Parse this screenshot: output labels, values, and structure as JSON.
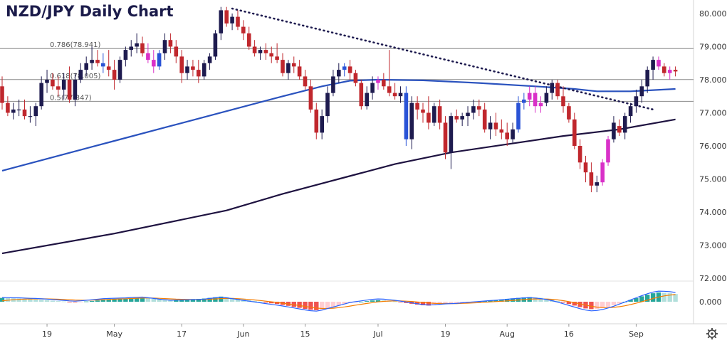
{
  "chart_data": {
    "type": "candlestick",
    "title": "NZD/JPY Daily Chart",
    "colors": {
      "up": "#1e1b4f",
      "down": "#c0272d",
      "doji_up": "#2a53d6",
      "doji_down": "#d930c8",
      "ma_fast": "#2a52be",
      "ma_slow": "#1e1240",
      "trendline": "#1e1b4f",
      "fib": "#888888",
      "hist_pos": "#26a69a",
      "hist_pos_light": "#b2dfdb",
      "hist_neg": "#ef5350",
      "hist_neg_light": "#ffcdd2",
      "macd": "#2962ff",
      "signal": "#f57c00"
    },
    "y_axis": {
      "ticks": [
        "80.000",
        "79.000",
        "78.000",
        "77.000",
        "76.000",
        "75.000",
        "74.000",
        "73.000",
        "72.000"
      ],
      "values": [
        80,
        79,
        78,
        77,
        76,
        75,
        74,
        73,
        72
      ],
      "range": [
        72,
        80.2
      ]
    },
    "x_axis": {
      "labels": [
        "19",
        "May",
        "17",
        "Jun",
        "15",
        "Jul",
        "19",
        "Aug",
        "16",
        "Sep"
      ],
      "at_index": [
        8,
        20,
        32,
        43,
        54,
        67,
        79,
        90,
        101,
        113
      ]
    },
    "fib_levels": [
      {
        "label": "0.786(78.941)",
        "value": 78.941
      },
      {
        "label": "0.618(78.005)",
        "value": 78.005
      },
      {
        "label": "0.5(77.347)",
        "value": 77.347
      }
    ],
    "trendline": {
      "from": {
        "index": 41,
        "value": 80.15
      },
      "to": {
        "index": 116,
        "value": 77.1
      }
    },
    "candles": [
      [
        77.8,
        78.1,
        77.1,
        77.3
      ],
      [
        77.3,
        77.5,
        76.9,
        77.0
      ],
      [
        77.0,
        77.3,
        76.8,
        77.1
      ],
      [
        77.1,
        77.4,
        76.9,
        77.1
      ],
      [
        77.1,
        77.4,
        76.8,
        76.9
      ],
      [
        76.9,
        77.2,
        76.7,
        76.9
      ],
      [
        76.9,
        77.3,
        76.6,
        77.2
      ],
      [
        77.2,
        78.1,
        77.1,
        77.9
      ],
      [
        77.9,
        78.3,
        77.6,
        78.0
      ],
      [
        78.0,
        78.2,
        77.7,
        77.8
      ],
      [
        77.8,
        78.1,
        77.5,
        77.7
      ],
      [
        77.7,
        78.2,
        77.4,
        78.0
      ],
      [
        78.0,
        78.4,
        77.3,
        77.4
      ],
      [
        77.4,
        78.2,
        77.2,
        78.0
      ],
      [
        78.0,
        78.5,
        77.9,
        78.3
      ],
      [
        78.3,
        78.7,
        78.1,
        78.5
      ],
      [
        78.5,
        79.0,
        78.3,
        78.6
      ],
      [
        78.6,
        78.9,
        78.4,
        78.5
      ],
      [
        78.5,
        78.8,
        78.2,
        78.4
      ],
      [
        78.4,
        78.9,
        78.1,
        78.3
      ],
      [
        78.3,
        78.6,
        77.7,
        78.0
      ],
      [
        78.0,
        78.7,
        77.9,
        78.6
      ],
      [
        78.6,
        79.0,
        78.4,
        78.9
      ],
      [
        78.9,
        79.2,
        78.7,
        79.0
      ],
      [
        79.0,
        79.4,
        78.8,
        79.1
      ],
      [
        79.1,
        79.3,
        78.7,
        78.8
      ],
      [
        78.8,
        79.1,
        78.5,
        78.6
      ],
      [
        78.6,
        78.9,
        78.2,
        78.4
      ],
      [
        78.4,
        78.9,
        78.3,
        78.8
      ],
      [
        78.8,
        79.4,
        78.6,
        79.2
      ],
      [
        79.2,
        79.4,
        78.8,
        79.0
      ],
      [
        79.0,
        79.2,
        78.5,
        78.7
      ],
      [
        78.7,
        78.9,
        77.9,
        78.2
      ],
      [
        78.2,
        78.6,
        78.0,
        78.4
      ],
      [
        78.4,
        78.6,
        78.1,
        78.3
      ],
      [
        78.3,
        78.6,
        77.9,
        78.1
      ],
      [
        78.1,
        78.6,
        78.0,
        78.5
      ],
      [
        78.5,
        78.8,
        78.3,
        78.7
      ],
      [
        78.7,
        79.5,
        78.6,
        79.4
      ],
      [
        79.4,
        80.2,
        79.2,
        80.1
      ],
      [
        80.1,
        80.2,
        79.6,
        79.7
      ],
      [
        79.7,
        80.0,
        79.5,
        79.9
      ],
      [
        79.9,
        80.1,
        79.5,
        79.6
      ],
      [
        79.6,
        79.8,
        79.2,
        79.4
      ],
      [
        79.4,
        79.6,
        78.9,
        79.0
      ],
      [
        79.0,
        79.2,
        78.7,
        78.8
      ],
      [
        78.8,
        79.0,
        78.6,
        78.9
      ],
      [
        78.9,
        79.1,
        78.6,
        78.8
      ],
      [
        78.8,
        79.0,
        78.5,
        78.7
      ],
      [
        78.7,
        79.1,
        78.5,
        78.6
      ],
      [
        78.6,
        78.8,
        78.1,
        78.2
      ],
      [
        78.2,
        78.6,
        78.0,
        78.5
      ],
      [
        78.5,
        78.7,
        78.2,
        78.4
      ],
      [
        78.4,
        78.6,
        78.0,
        78.1
      ],
      [
        78.1,
        78.3,
        77.7,
        77.8
      ],
      [
        77.8,
        78.0,
        77.0,
        77.1
      ],
      [
        77.1,
        77.3,
        76.2,
        76.4
      ],
      [
        76.4,
        77.1,
        76.2,
        76.9
      ],
      [
        76.9,
        77.8,
        76.7,
        77.6
      ],
      [
        77.6,
        78.3,
        77.5,
        78.1
      ],
      [
        78.1,
        78.5,
        77.9,
        78.3
      ],
      [
        78.3,
        78.5,
        78.1,
        78.4
      ],
      [
        78.4,
        78.6,
        78.0,
        78.2
      ],
      [
        78.2,
        78.3,
        77.8,
        77.9
      ],
      [
        77.9,
        78.0,
        77.1,
        77.2
      ],
      [
        77.2,
        77.8,
        77.1,
        77.6
      ],
      [
        77.6,
        78.1,
        77.4,
        77.9
      ],
      [
        77.9,
        78.1,
        77.7,
        78.0
      ],
      [
        78.0,
        78.2,
        77.7,
        77.8
      ],
      [
        77.8,
        78.9,
        77.5,
        77.6
      ],
      [
        77.6,
        77.9,
        77.4,
        77.5
      ],
      [
        77.5,
        77.8,
        77.3,
        77.6
      ],
      [
        77.6,
        77.8,
        76.0,
        76.2
      ],
      [
        76.2,
        77.5,
        75.9,
        77.3
      ],
      [
        77.3,
        77.5,
        76.8,
        77.1
      ],
      [
        77.1,
        77.3,
        76.7,
        77.0
      ],
      [
        77.0,
        77.5,
        76.5,
        76.7
      ],
      [
        76.7,
        77.3,
        76.6,
        77.2
      ],
      [
        77.2,
        77.4,
        76.5,
        76.7
      ],
      [
        76.7,
        76.9,
        75.6,
        75.8
      ],
      [
        75.8,
        77.0,
        75.3,
        76.9
      ],
      [
        76.9,
        77.1,
        76.7,
        76.8
      ],
      [
        76.8,
        77.0,
        76.6,
        76.9
      ],
      [
        76.9,
        77.2,
        76.6,
        77.0
      ],
      [
        77.0,
        77.4,
        76.8,
        77.2
      ],
      [
        77.2,
        77.4,
        76.9,
        77.1
      ],
      [
        77.1,
        77.3,
        76.4,
        76.5
      ],
      [
        76.5,
        76.9,
        76.2,
        76.7
      ],
      [
        76.7,
        77.0,
        76.3,
        76.5
      ],
      [
        76.5,
        76.8,
        76.2,
        76.4
      ],
      [
        76.4,
        76.7,
        76.0,
        76.2
      ],
      [
        76.2,
        76.7,
        76.1,
        76.5
      ],
      [
        76.5,
        77.5,
        76.4,
        77.3
      ],
      [
        77.3,
        77.6,
        77.1,
        77.4
      ],
      [
        77.4,
        77.8,
        77.2,
        77.6
      ],
      [
        77.6,
        77.8,
        77.0,
        77.2
      ],
      [
        77.2,
        77.5,
        77.0,
        77.3
      ],
      [
        77.3,
        77.8,
        77.2,
        77.6
      ],
      [
        77.6,
        78.0,
        77.4,
        77.9
      ],
      [
        77.9,
        78.0,
        77.4,
        77.5
      ],
      [
        77.5,
        77.8,
        77.0,
        77.2
      ],
      [
        77.2,
        77.3,
        76.7,
        76.8
      ],
      [
        76.8,
        77.0,
        75.9,
        76.0
      ],
      [
        76.0,
        76.2,
        75.3,
        75.5
      ],
      [
        75.5,
        75.7,
        74.9,
        75.2
      ],
      [
        75.2,
        75.5,
        74.6,
        74.8
      ],
      [
        74.8,
        75.1,
        74.6,
        74.9
      ],
      [
        74.9,
        75.6,
        74.8,
        75.5
      ],
      [
        75.5,
        76.3,
        75.4,
        76.2
      ],
      [
        76.2,
        76.9,
        76.1,
        76.7
      ],
      [
        76.6,
        76.8,
        76.3,
        76.4
      ],
      [
        76.4,
        77.0,
        76.2,
        76.9
      ],
      [
        76.9,
        77.3,
        76.7,
        77.2
      ],
      [
        77.2,
        77.7,
        77.0,
        77.5
      ],
      [
        77.5,
        78.0,
        77.3,
        77.8
      ],
      [
        77.8,
        78.4,
        77.6,
        78.3
      ],
      [
        78.3,
        78.7,
        78.0,
        78.6
      ],
      [
        78.6,
        78.7,
        78.3,
        78.4
      ],
      [
        78.4,
        78.5,
        78.1,
        78.2
      ],
      [
        78.2,
        78.4,
        78.0,
        78.3
      ],
      [
        78.3,
        78.4,
        78.1,
        78.25
      ]
    ],
    "doji_up_indices": [
      18,
      28,
      61,
      72,
      92,
      93
    ],
    "doji_down_indices": [
      26,
      27,
      67,
      94,
      95,
      96,
      107,
      108,
      117,
      119
    ],
    "ma_fast": [
      {
        "i": 0,
        "v": 75.25
      },
      {
        "i": 10,
        "v": 75.7
      },
      {
        "i": 20,
        "v": 76.15
      },
      {
        "i": 30,
        "v": 76.6
      },
      {
        "i": 40,
        "v": 77.05
      },
      {
        "i": 50,
        "v": 77.5
      },
      {
        "i": 57,
        "v": 77.8
      },
      {
        "i": 62,
        "v": 77.97
      },
      {
        "i": 67,
        "v": 78.0
      },
      {
        "i": 75,
        "v": 77.98
      },
      {
        "i": 85,
        "v": 77.9
      },
      {
        "i": 95,
        "v": 77.8
      },
      {
        "i": 102,
        "v": 77.72
      },
      {
        "i": 106,
        "v": 77.65
      },
      {
        "i": 112,
        "v": 77.65
      },
      {
        "i": 120,
        "v": 77.72
      }
    ],
    "ma_slow": [
      {
        "i": 0,
        "v": 72.75
      },
      {
        "i": 20,
        "v": 73.35
      },
      {
        "i": 40,
        "v": 74.05
      },
      {
        "i": 50,
        "v": 74.55
      },
      {
        "i": 60,
        "v": 75.0
      },
      {
        "i": 70,
        "v": 75.45
      },
      {
        "i": 80,
        "v": 75.8
      },
      {
        "i": 90,
        "v": 76.05
      },
      {
        "i": 100,
        "v": 76.3
      },
      {
        "i": 110,
        "v": 76.5
      },
      {
        "i": 120,
        "v": 76.8
      }
    ],
    "macd_panel": {
      "zero_label": "0.000",
      "hist": [
        0.3,
        0.28,
        0.26,
        0.25,
        0.22,
        0.2,
        0.18,
        0.15,
        0.12,
        0.08,
        0.05,
        0.02,
        -0.02,
        -0.04,
        -0.02,
        0.02,
        0.06,
        0.1,
        0.14,
        0.16,
        0.18,
        0.2,
        0.22,
        0.25,
        0.28,
        0.3,
        0.26,
        0.22,
        0.18,
        0.15,
        0.12,
        0.14,
        0.16,
        0.18,
        0.2,
        0.22,
        0.25,
        0.3,
        0.35,
        0.4,
        0.36,
        0.3,
        0.24,
        0.18,
        0.12,
        0.06,
        0.0,
        -0.06,
        -0.12,
        -0.18,
        -0.25,
        -0.32,
        -0.4,
        -0.48,
        -0.56,
        -0.62,
        -0.66,
        -0.6,
        -0.5,
        -0.4,
        -0.3,
        -0.2,
        -0.1,
        -0.05,
        0.0,
        0.05,
        0.1,
        0.12,
        0.1,
        0.06,
        0.02,
        -0.04,
        -0.1,
        -0.16,
        -0.22,
        -0.28,
        -0.3,
        -0.28,
        -0.24,
        -0.2,
        -0.18,
        -0.15,
        -0.1,
        -0.06,
        -0.02,
        0.02,
        0.06,
        0.1,
        0.14,
        0.18,
        0.22,
        0.26,
        0.3,
        0.34,
        0.36,
        0.34,
        0.3,
        0.24,
        0.16,
        0.06,
        -0.06,
        -0.18,
        -0.3,
        -0.42,
        -0.52,
        -0.58,
        -0.56,
        -0.5,
        -0.4,
        -0.28,
        -0.14,
        0.0,
        0.14,
        0.28,
        0.42,
        0.55,
        0.66,
        0.72,
        0.7,
        0.66,
        0.6
      ]
    }
  }
}
